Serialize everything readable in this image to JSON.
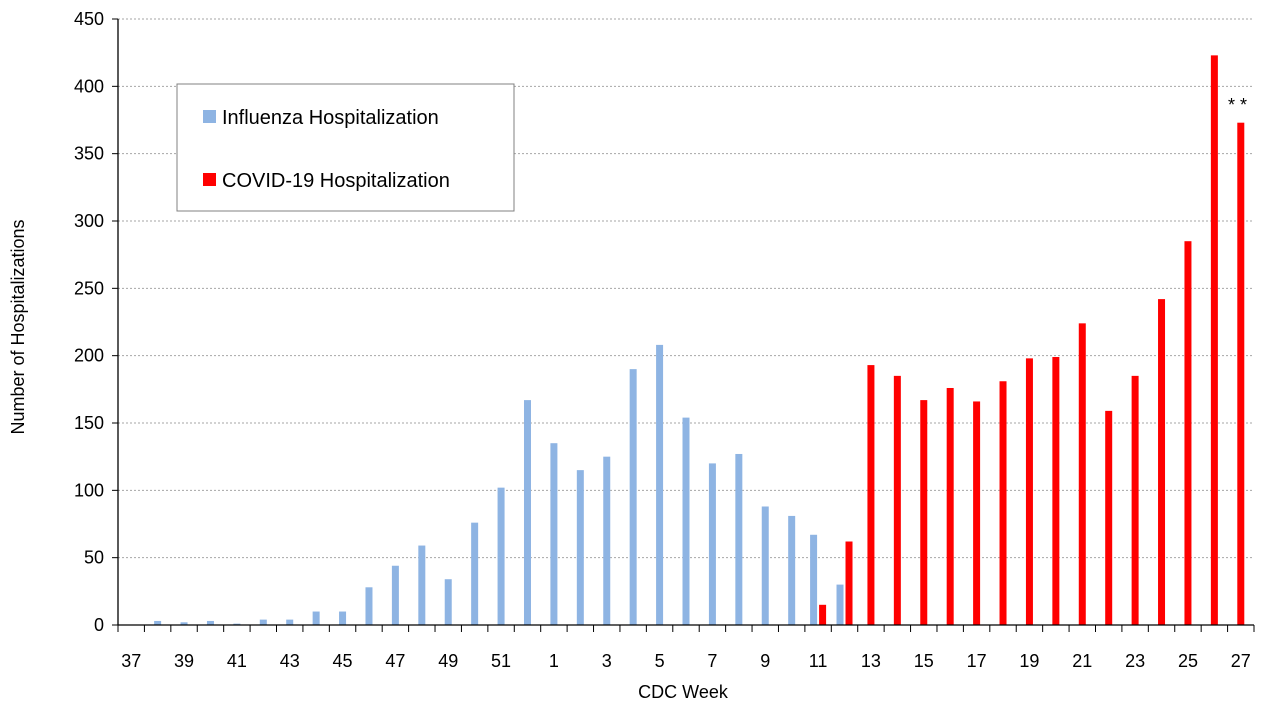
{
  "chart_data": {
    "type": "bar",
    "xlabel": "CDC Week",
    "ylabel": "Number of Hospitalizations",
    "ylim": [
      0,
      450
    ],
    "yticks": [
      0,
      50,
      100,
      150,
      200,
      250,
      300,
      350,
      400,
      450
    ],
    "grid": true,
    "legend_position": "top-left",
    "categories": [
      "37",
      "38",
      "39",
      "40",
      "41",
      "42",
      "43",
      "44",
      "45",
      "46",
      "47",
      "48",
      "49",
      "50",
      "51",
      "52",
      "1",
      "2",
      "3",
      "4",
      "5",
      "6",
      "7",
      "8",
      "9",
      "10",
      "11",
      "12",
      "13",
      "14",
      "15",
      "16",
      "17",
      "18",
      "19",
      "20",
      "21",
      "22",
      "23",
      "24",
      "25",
      "26",
      "27"
    ],
    "tick_labels": [
      "37",
      "39",
      "41",
      "43",
      "45",
      "47",
      "49",
      "51",
      "1",
      "3",
      "5",
      "7",
      "9",
      "11",
      "13",
      "15",
      "17",
      "19",
      "21",
      "23",
      "25",
      "27"
    ],
    "series": [
      {
        "name": "Influenza Hospitalization",
        "color": "#8EB4E3",
        "values": [
          0,
          3,
          2,
          3,
          1,
          4,
          4,
          10,
          10,
          28,
          44,
          59,
          34,
          76,
          102,
          167,
          135,
          115,
          125,
          190,
          208,
          154,
          120,
          127,
          88,
          81,
          67,
          30,
          null,
          null,
          null,
          null,
          null,
          null,
          null,
          null,
          null,
          null,
          null,
          null,
          null,
          null,
          null
        ]
      },
      {
        "name": "COVID-19 Hospitalization",
        "color": "#FF0000",
        "values": [
          null,
          null,
          null,
          null,
          null,
          null,
          null,
          null,
          null,
          null,
          null,
          null,
          null,
          null,
          null,
          null,
          null,
          null,
          null,
          null,
          null,
          null,
          null,
          null,
          null,
          null,
          15,
          62,
          193,
          185,
          167,
          176,
          166,
          181,
          198,
          199,
          224,
          159,
          185,
          242,
          285,
          423,
          373
        ]
      }
    ],
    "annotation": "* *"
  },
  "colors": {
    "grid": "#a6a6a6",
    "axis": "#000000",
    "legend_border": "#808080"
  }
}
